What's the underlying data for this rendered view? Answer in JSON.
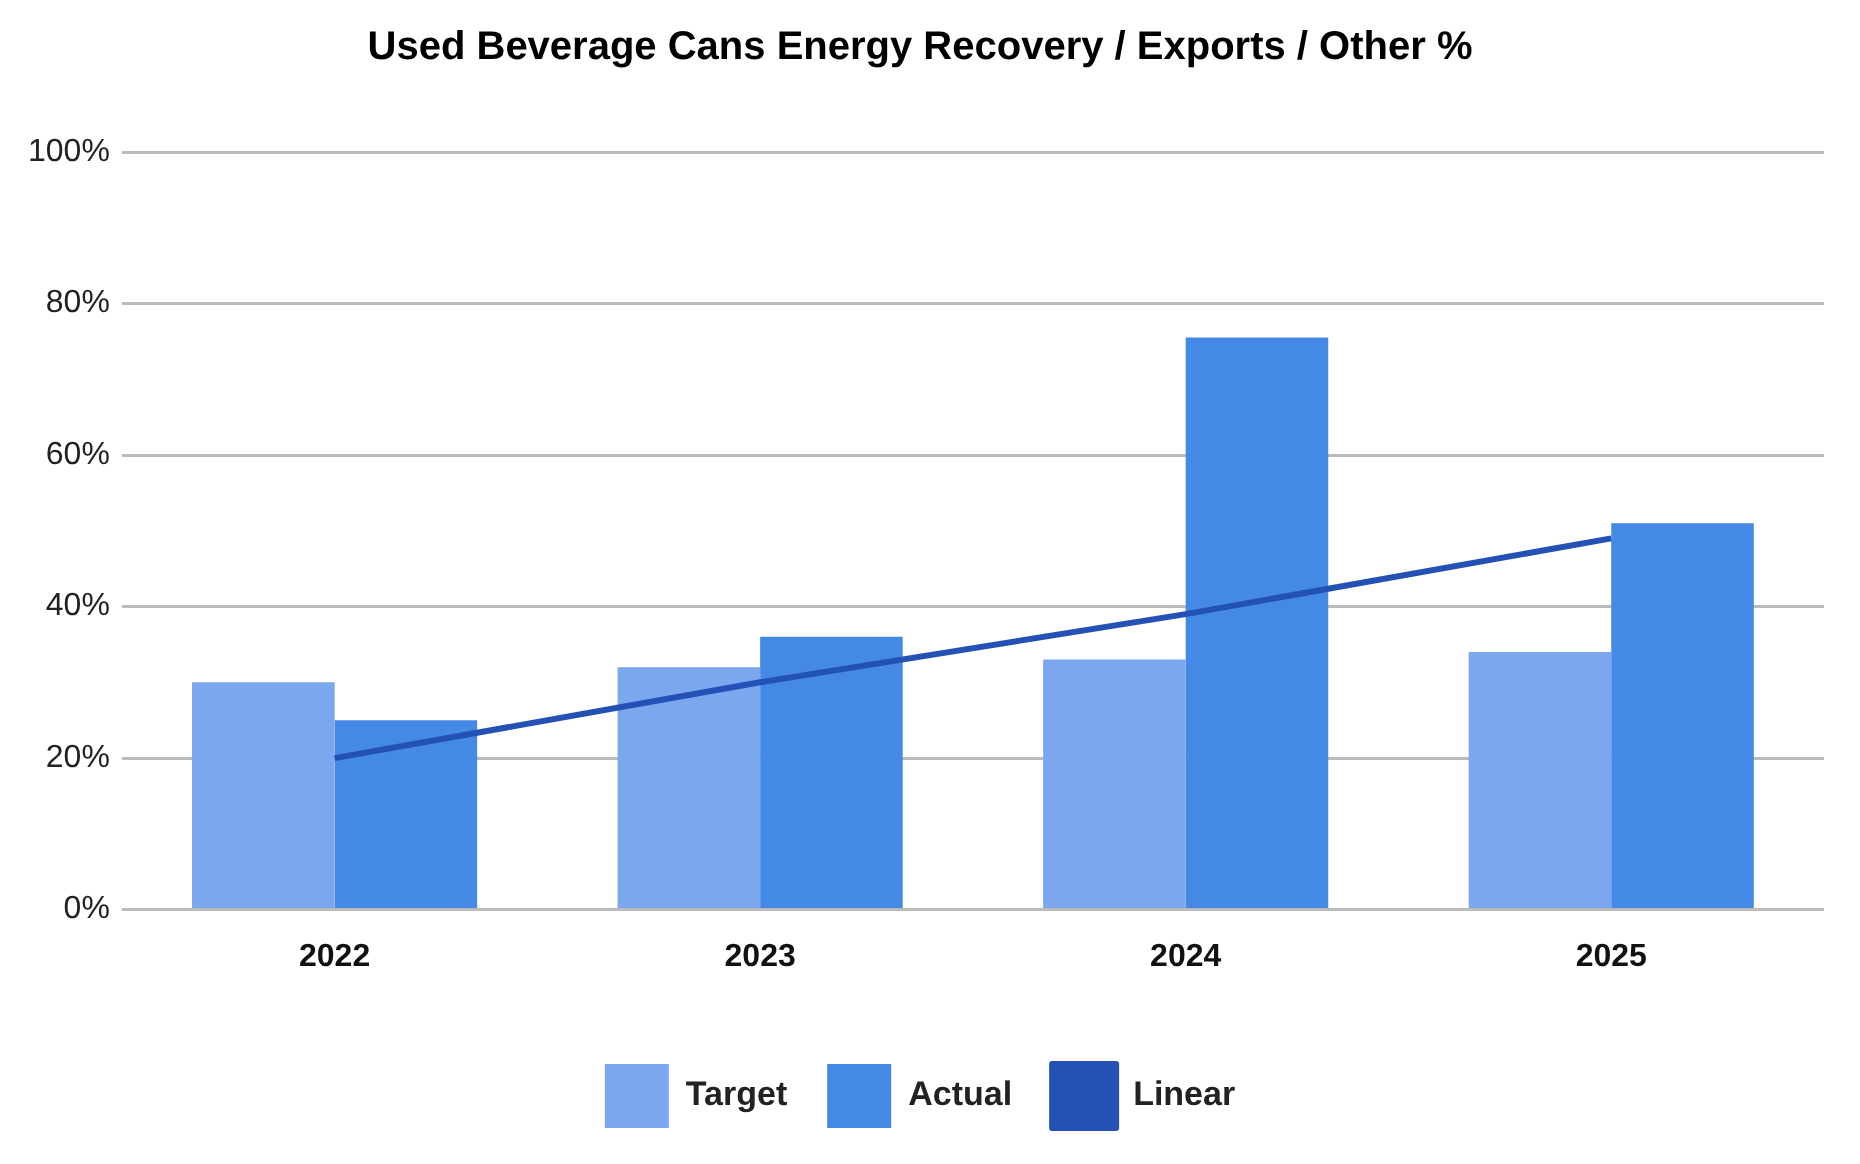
{
  "chart_data": {
    "type": "bar",
    "title": "Used Beverage Cans Energy Recovery / Exports / Other %",
    "categories": [
      "2022",
      "2023",
      "2024",
      "2025"
    ],
    "series": [
      {
        "name": "Target",
        "color": "#7ba7ee",
        "values": [
          30,
          32,
          33,
          34
        ]
      },
      {
        "name": "Actual",
        "color": "#4589e6",
        "values": [
          25,
          36,
          75.5,
          51
        ]
      },
      {
        "name": "Linear",
        "type": "line",
        "color": "#2451b5",
        "values": [
          20,
          30,
          39,
          49
        ],
        "marker": "none",
        "line_style": "solid"
      }
    ],
    "ylim": [
      0,
      100
    ],
    "yticks": [
      {
        "value": 0,
        "label": "0%"
      },
      {
        "value": 20,
        "label": "20%"
      },
      {
        "value": 40,
        "label": "40%"
      },
      {
        "value": 60,
        "label": "60%"
      },
      {
        "value": 80,
        "label": "80%"
      },
      {
        "value": 100,
        "label": "100%"
      }
    ],
    "grid": "y",
    "legend": "bottom"
  }
}
